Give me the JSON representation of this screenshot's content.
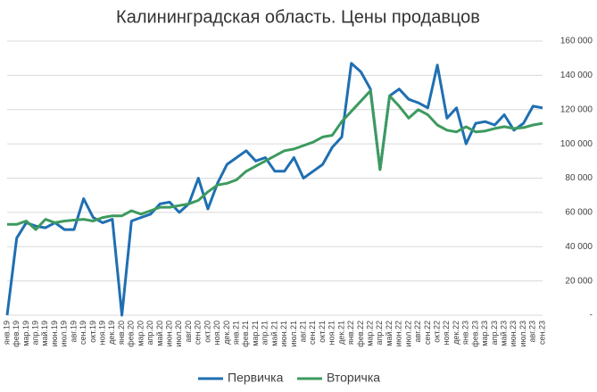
{
  "chart_data": {
    "type": "line",
    "title": "Калининградская область. Цены продавцов",
    "categories": [
      "янв.19",
      "фев.19",
      "мар.19",
      "апр.19",
      "май.19",
      "июн.19",
      "июл.19",
      "авг.19",
      "сен.19",
      "окт.19",
      "ноя.19",
      "дек.19",
      "янв.20",
      "фев.20",
      "мар.20",
      "апр.20",
      "май.20",
      "июн.20",
      "июл.20",
      "авг.20",
      "сен.20",
      "окт.20",
      "ноя.20",
      "дек.20",
      "янв.21",
      "фев.21",
      "мар.21",
      "апр.21",
      "май.21",
      "июн.21",
      "июл.21",
      "авг.21",
      "сен.21",
      "окт.21",
      "ноя.21",
      "дек.21",
      "янв.22",
      "фев.22",
      "мар.22",
      "апр.22",
      "май.22",
      "июн.22",
      "июл.22",
      "авг.22",
      "сен.22",
      "окт.22",
      "ноя.22",
      "дек.22",
      "янв.23",
      "фев.23",
      "мар.23",
      "апр.23",
      "май.23",
      "июн.23",
      "июл.23",
      "авг.23",
      "сен.23"
    ],
    "series": [
      {
        "name": "Первичка",
        "color": "#1f6fb2",
        "values": [
          0,
          45000,
          54000,
          52000,
          51000,
          54000,
          50000,
          50000,
          68000,
          57000,
          54000,
          56000,
          0,
          55000,
          57000,
          59000,
          65000,
          66000,
          60000,
          65000,
          80000,
          62000,
          77000,
          88000,
          92000,
          96000,
          90000,
          92000,
          84000,
          84000,
          92000,
          80000,
          84000,
          88000,
          98000,
          104000,
          147000,
          142000,
          132000,
          85000,
          128000,
          132000,
          126000,
          124000,
          121000,
          146000,
          115000,
          121000,
          100000,
          112000,
          113000,
          111000,
          117000,
          108000,
          112000,
          122000,
          121000
        ]
      },
      {
        "name": "Вторичка",
        "color": "#3d9a5f",
        "values": [
          53000,
          53000,
          55000,
          50000,
          56000,
          54000,
          55000,
          55500,
          56000,
          55000,
          57000,
          58000,
          58000,
          61000,
          59000,
          61000,
          63000,
          63000,
          64000,
          65000,
          67000,
          72000,
          76000,
          77000,
          79000,
          84000,
          87000,
          90000,
          93000,
          96000,
          97000,
          99000,
          101000,
          104000,
          105000,
          113000,
          119000,
          125000,
          131000,
          85000,
          128000,
          122000,
          115000,
          120000,
          117000,
          111000,
          108000,
          107000,
          110000,
          107000,
          107500,
          109000,
          110000,
          109000,
          109500,
          111000,
          112000
        ]
      }
    ],
    "ylim": [
      0,
      160000
    ],
    "yticks": [
      {
        "value": 0,
        "label": "-"
      },
      {
        "value": 20000,
        "label": "20 000"
      },
      {
        "value": 40000,
        "label": "40 000"
      },
      {
        "value": 60000,
        "label": "60 000"
      },
      {
        "value": 80000,
        "label": "80 000"
      },
      {
        "value": 100000,
        "label": "100 000"
      },
      {
        "value": 120000,
        "label": "120 000"
      },
      {
        "value": 140000,
        "label": "140 000"
      },
      {
        "value": 160000,
        "label": "160 000"
      }
    ],
    "grid": true
  }
}
